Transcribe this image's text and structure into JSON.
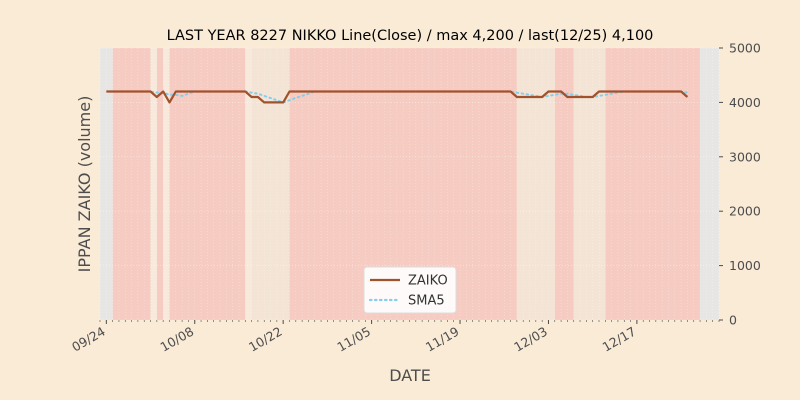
{
  "chart_data": {
    "type": "line",
    "title": "LAST YEAR 8227 NIKKO Line(Close) / max 4,200 / last(12/25) 4,100",
    "xlabel": "DATE",
    "ylabel": "IPPAN ZAIKO (volume)",
    "ylim": [
      0,
      5000
    ],
    "xlim": [
      "2023-09-23",
      "2023-12-30"
    ],
    "y_axis_side": "right",
    "yticks": [
      0,
      1000,
      2000,
      3000,
      4000,
      5000
    ],
    "xticks": [
      "09/24",
      "10/08",
      "10/22",
      "11/05",
      "11/19",
      "12/03",
      "12/17"
    ],
    "grid": true,
    "legend_position": "lower-center",
    "x": [
      "2023-09-24",
      "2023-09-25",
      "2023-09-26",
      "2023-09-27",
      "2023-09-28",
      "2023-09-29",
      "2023-09-30",
      "2023-10-01",
      "2023-10-02",
      "2023-10-03",
      "2023-10-04",
      "2023-10-05",
      "2023-10-06",
      "2023-10-07",
      "2023-10-08",
      "2023-10-09",
      "2023-10-10",
      "2023-10-11",
      "2023-10-12",
      "2023-10-13",
      "2023-10-14",
      "2023-10-15",
      "2023-10-16",
      "2023-10-17",
      "2023-10-18",
      "2023-10-19",
      "2023-10-20",
      "2023-10-21",
      "2023-10-22",
      "2023-10-23",
      "2023-10-24",
      "2023-10-25",
      "2023-10-26",
      "2023-10-27",
      "2023-10-28",
      "2023-10-29",
      "2023-10-30",
      "2023-10-31",
      "2023-11-01",
      "2023-11-02",
      "2023-11-03",
      "2023-11-04",
      "2023-11-05",
      "2023-11-06",
      "2023-11-07",
      "2023-11-08",
      "2023-11-09",
      "2023-11-10",
      "2023-11-11",
      "2023-11-12",
      "2023-11-13",
      "2023-11-14",
      "2023-11-15",
      "2023-11-16",
      "2023-11-17",
      "2023-11-18",
      "2023-11-19",
      "2023-11-20",
      "2023-11-21",
      "2023-11-22",
      "2023-11-23",
      "2023-11-24",
      "2023-11-25",
      "2023-11-26",
      "2023-11-27",
      "2023-11-28",
      "2023-11-29",
      "2023-11-30",
      "2023-12-01",
      "2023-12-02",
      "2023-12-03",
      "2023-12-04",
      "2023-12-05",
      "2023-12-06",
      "2023-12-07",
      "2023-12-08",
      "2023-12-09",
      "2023-12-10",
      "2023-12-11",
      "2023-12-12",
      "2023-12-13",
      "2023-12-14",
      "2023-12-15",
      "2023-12-16",
      "2023-12-17",
      "2023-12-18",
      "2023-12-19",
      "2023-12-20",
      "2023-12-21",
      "2023-12-22",
      "2023-12-23",
      "2023-12-24",
      "2023-12-25"
    ],
    "series": [
      {
        "name": "ZAIKO",
        "color": "#a0522d",
        "style": "solid",
        "values": [
          4200,
          4200,
          4200,
          4200,
          4200,
          4200,
          4200,
          4200,
          4100,
          4200,
          4000,
          4200,
          4200,
          4200,
          4200,
          4200,
          4200,
          4200,
          4200,
          4200,
          4200,
          4200,
          4200,
          4100,
          4100,
          4000,
          4000,
          4000,
          4000,
          4200,
          4200,
          4200,
          4200,
          4200,
          4200,
          4200,
          4200,
          4200,
          4200,
          4200,
          4200,
          4200,
          4200,
          4200,
          4200,
          4200,
          4200,
          4200,
          4200,
          4200,
          4200,
          4200,
          4200,
          4200,
          4200,
          4200,
          4200,
          4200,
          4200,
          4200,
          4200,
          4200,
          4200,
          4200,
          4200,
          4100,
          4100,
          4100,
          4100,
          4100,
          4200,
          4200,
          4200,
          4100,
          4100,
          4100,
          4100,
          4100,
          4200,
          4200,
          4200,
          4200,
          4200,
          4200,
          4200,
          4200,
          4200,
          4200,
          4200,
          4200,
          4200,
          4200,
          4100
        ]
      },
      {
        "name": "SMA5",
        "color": "#87ceeb",
        "style": "dotted",
        "values": [
          null,
          null,
          null,
          null,
          4200,
          4200,
          4200,
          4200,
          4180,
          4180,
          4140,
          4140,
          4120,
          4160,
          4200,
          4200,
          4200,
          4200,
          4200,
          4200,
          4200,
          4200,
          4200,
          4180,
          4160,
          4120,
          4080,
          4040,
          4000,
          4040,
          4080,
          4120,
          4160,
          4200,
          4200,
          4200,
          4200,
          4200,
          4200,
          4200,
          4200,
          4200,
          4200,
          4200,
          4200,
          4200,
          4200,
          4200,
          4200,
          4200,
          4200,
          4200,
          4200,
          4200,
          4200,
          4200,
          4200,
          4200,
          4200,
          4200,
          4200,
          4200,
          4200,
          4200,
          4200,
          4180,
          4160,
          4140,
          4120,
          4100,
          4120,
          4140,
          4160,
          4160,
          4140,
          4120,
          4100,
          4100,
          4120,
          4140,
          4160,
          4180,
          4200,
          4200,
          4200,
          4200,
          4200,
          4200,
          4200,
          4200,
          4200,
          4200,
          4180
        ]
      }
    ],
    "shaded_periods": [
      {
        "color": "#f4a6a0",
        "opacity": 0.45,
        "ranges": [
          [
            "2023-09-25",
            "2023-10-01"
          ],
          [
            "2023-10-02",
            "2023-10-03"
          ],
          [
            "2023-10-04",
            "2023-10-16"
          ],
          [
            "2023-10-23",
            "2023-11-28"
          ],
          [
            "2023-12-04",
            "2023-12-07"
          ],
          [
            "2023-12-12",
            "2023-12-27"
          ]
        ]
      },
      {
        "color": "#f3e2d3",
        "opacity": 0.8,
        "ranges": [
          [
            "2023-10-17",
            "2023-10-23"
          ],
          [
            "2023-11-28",
            "2023-12-04"
          ],
          [
            "2023-12-07",
            "2023-12-12"
          ]
        ]
      },
      {
        "color": "#e6e6e6",
        "opacity": 0.9,
        "ranges": [
          [
            "2023-09-23",
            "2023-09-25"
          ],
          [
            "2023-12-27",
            "2023-12-30"
          ]
        ]
      }
    ]
  }
}
